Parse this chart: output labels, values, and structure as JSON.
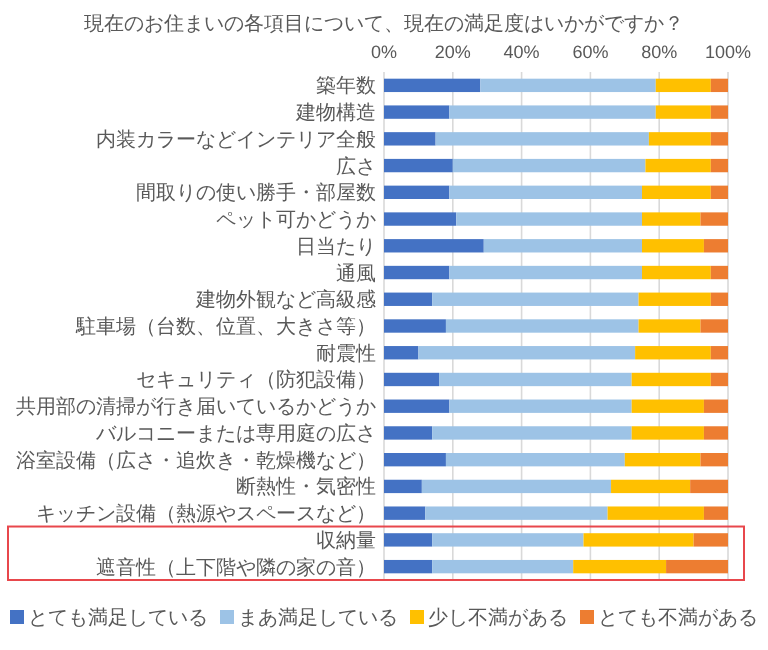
{
  "chart_data": {
    "type": "bar",
    "orientation": "horizontal",
    "stacked": true,
    "title": "現在のお住まいの各項目について、現在の満足度はいかがですか？",
    "categories": [
      "築年数",
      "建物構造",
      "内装カラーなどインテリア全般",
      "広さ",
      "間取りの使い勝手・部屋数",
      "ペット可かどうか",
      "日当たり",
      "通風",
      "建物外観など高級感",
      "駐車場（台数、位置、大きさ等）",
      "耐震性",
      "セキュリティ（防犯設備）",
      "共用部の清掃が行き届いているかどうか",
      "バルコニーまたは専用庭の広さ",
      "浴室設備（広さ・追炊き・乾燥機など）",
      "断熱性・気密性",
      "キッチン設備（熱源やスペースなど）",
      "収納量",
      "遮音性（上下階や隣の家の音）"
    ],
    "series": [
      {
        "name": "とても満足している",
        "color": "#4472c4",
        "values": [
          28,
          19,
          15,
          20,
          19,
          21,
          29,
          19,
          14,
          18,
          10,
          16,
          19,
          14,
          18,
          11,
          12,
          14,
          14
        ]
      },
      {
        "name": "まあ満足している",
        "color": "#9dc3e6",
        "values": [
          51,
          60,
          62,
          56,
          56,
          54,
          46,
          56,
          60,
          56,
          63,
          56,
          53,
          58,
          52,
          55,
          53,
          44,
          41
        ]
      },
      {
        "name": "少し不満がある",
        "color": "#ffc000",
        "values": [
          16,
          16,
          18,
          19,
          20,
          17,
          18,
          20,
          21,
          18,
          22,
          23,
          21,
          21,
          22,
          23,
          28,
          32,
          27
        ]
      },
      {
        "name": "とても不満がある",
        "color": "#ed7d31",
        "values": [
          5,
          5,
          5,
          5,
          5,
          8,
          7,
          5,
          5,
          8,
          5,
          5,
          7,
          7,
          8,
          11,
          7,
          10,
          18
        ]
      }
    ],
    "xlim": [
      0,
      100
    ],
    "xticks": [
      {
        "value": 0,
        "label": "0%"
      },
      {
        "value": 20,
        "label": "20%"
      },
      {
        "value": 40,
        "label": "40%"
      },
      {
        "value": 60,
        "label": "60%"
      },
      {
        "value": 80,
        "label": "80%"
      },
      {
        "value": 100,
        "label": "100%"
      }
    ],
    "grid": "x",
    "legend": "bottom"
  }
}
